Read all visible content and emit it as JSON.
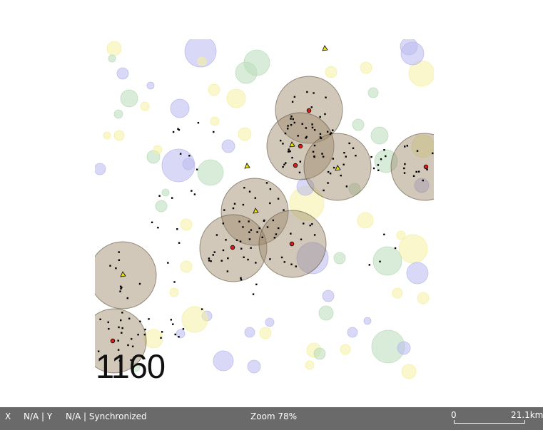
{
  "simulation": {
    "step": "1160",
    "colors": {
      "background": "#ffffff",
      "agent_circle_fill": "#9a8665",
      "yellow_zone": "#f4f0a0",
      "green_zone": "#b9dcb9",
      "blue_zone": "#b9b9f0",
      "agent_red": "#e01818",
      "agent_yellow": "#f0e000",
      "particle": "#000000",
      "statusbar": "#6a6a6a"
    }
  },
  "statusbar": {
    "x_label": "X",
    "x_value": "N/A | Y",
    "y_value": "N/A | Synchronized",
    "zoom": "Zoom 78%",
    "scale_min": "0",
    "scale_max": "21.1km"
  }
}
